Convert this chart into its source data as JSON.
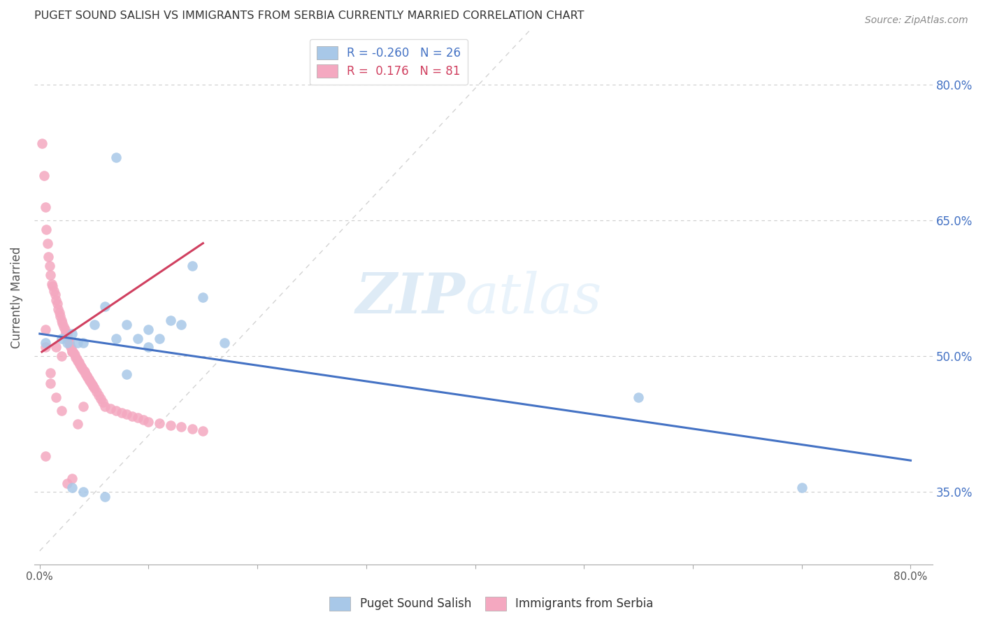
{
  "title": "PUGET SOUND SALISH VS IMMIGRANTS FROM SERBIA CURRENTLY MARRIED CORRELATION CHART",
  "source": "Source: ZipAtlas.com",
  "ylabel": "Currently Married",
  "x_ticks": [
    0.0,
    0.8
  ],
  "x_ticklabels": [
    "0.0%",
    "80.0%"
  ],
  "y_ticks_right": [
    0.35,
    0.5,
    0.65,
    0.8
  ],
  "y_ticklabels_right": [
    "35.0%",
    "50.0%",
    "65.0%",
    "80.0%"
  ],
  "legend_labels": [
    "Puget Sound Salish",
    "Immigrants from Serbia"
  ],
  "R_blue": -0.26,
  "N_blue": 26,
  "R_pink": 0.176,
  "N_pink": 81,
  "blue_color": "#a8c8e8",
  "pink_color": "#f4a8c0",
  "blue_line_color": "#4472c4",
  "pink_line_color": "#d04060",
  "watermark_zip": "ZIP",
  "watermark_atlas": "atlas",
  "xlim": [
    -0.005,
    0.82
  ],
  "ylim": [
    0.27,
    0.86
  ],
  "blue_x": [
    0.005,
    0.07,
    0.03,
    0.02,
    0.04,
    0.08,
    0.1,
    0.06,
    0.09,
    0.12,
    0.15,
    0.11,
    0.13,
    0.17,
    0.14,
    0.03,
    0.04,
    0.06,
    0.08,
    0.07,
    0.55,
    0.7,
    0.05,
    0.025,
    0.035,
    0.1
  ],
  "blue_y": [
    0.515,
    0.72,
    0.525,
    0.52,
    0.515,
    0.535,
    0.53,
    0.555,
    0.52,
    0.54,
    0.565,
    0.52,
    0.535,
    0.515,
    0.6,
    0.355,
    0.35,
    0.345,
    0.48,
    0.52,
    0.455,
    0.355,
    0.535,
    0.515,
    0.515,
    0.51
  ],
  "pink_x": [
    0.002,
    0.004,
    0.005,
    0.006,
    0.007,
    0.008,
    0.009,
    0.01,
    0.011,
    0.012,
    0.013,
    0.014,
    0.015,
    0.016,
    0.017,
    0.018,
    0.019,
    0.02,
    0.021,
    0.022,
    0.023,
    0.024,
    0.025,
    0.026,
    0.027,
    0.028,
    0.029,
    0.03,
    0.031,
    0.032,
    0.033,
    0.034,
    0.035,
    0.036,
    0.037,
    0.038,
    0.039,
    0.04,
    0.041,
    0.042,
    0.043,
    0.044,
    0.045,
    0.046,
    0.047,
    0.048,
    0.049,
    0.05,
    0.052,
    0.054,
    0.056,
    0.058,
    0.06,
    0.065,
    0.07,
    0.075,
    0.08,
    0.085,
    0.09,
    0.095,
    0.1,
    0.11,
    0.12,
    0.13,
    0.14,
    0.15,
    0.005,
    0.01,
    0.015,
    0.02,
    0.025,
    0.03,
    0.035,
    0.04,
    0.005,
    0.01,
    0.015,
    0.02,
    0.025,
    0.03,
    0.005
  ],
  "pink_y": [
    0.735,
    0.7,
    0.665,
    0.64,
    0.625,
    0.61,
    0.6,
    0.59,
    0.58,
    0.578,
    0.572,
    0.568,
    0.562,
    0.558,
    0.552,
    0.548,
    0.544,
    0.54,
    0.537,
    0.533,
    0.53,
    0.526,
    0.523,
    0.519,
    0.516,
    0.512,
    0.509,
    0.506,
    0.504,
    0.502,
    0.499,
    0.497,
    0.495,
    0.493,
    0.491,
    0.489,
    0.487,
    0.485,
    0.483,
    0.481,
    0.479,
    0.477,
    0.475,
    0.473,
    0.471,
    0.469,
    0.467,
    0.465,
    0.461,
    0.457,
    0.453,
    0.449,
    0.445,
    0.442,
    0.44,
    0.438,
    0.436,
    0.434,
    0.432,
    0.43,
    0.428,
    0.426,
    0.424,
    0.422,
    0.42,
    0.418,
    0.51,
    0.482,
    0.455,
    0.44,
    0.36,
    0.365,
    0.425,
    0.445,
    0.53,
    0.47,
    0.51,
    0.5,
    0.525,
    0.505,
    0.39
  ],
  "blue_trend_x": [
    0.0,
    0.8
  ],
  "blue_trend_y": [
    0.525,
    0.385
  ],
  "pink_trend_x": [
    0.002,
    0.15
  ],
  "pink_trend_y": [
    0.505,
    0.625
  ]
}
